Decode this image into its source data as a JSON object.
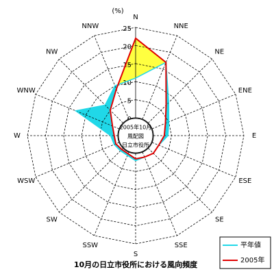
{
  "chart_data": {
    "type": "radar",
    "title": "10月の日立市役所における風向頻度",
    "unit": "(%)",
    "center_labels": [
      "2005年10月",
      "風配図",
      "日立市役所"
    ],
    "categories": [
      "N",
      "NNE",
      "NE",
      "ENE",
      "E",
      "ESE",
      "SE",
      "SSE",
      "S",
      "SSW",
      "SW",
      "WSW",
      "W",
      "WNW",
      "NW",
      "NNW"
    ],
    "series": [
      {
        "name": "平年値",
        "color": "#20d8e8",
        "values": [
          11,
          17,
          8,
          5,
          4,
          2,
          2,
          1.5,
          2,
          1,
          1,
          1.5,
          2,
          13,
          7,
          10
        ]
      },
      {
        "name": "2005年",
        "color": "#e00000",
        "values": [
          22,
          17,
          7,
          4,
          3,
          2,
          2,
          1.5,
          1.5,
          0.5,
          0.5,
          1,
          1,
          2,
          5,
          9
        ]
      }
    ],
    "gain_color": "#ffff40",
    "rlim": [
      0,
      25
    ],
    "rticks": [
      0,
      5,
      10,
      15,
      20,
      25
    ],
    "legend": "bottom-right"
  }
}
